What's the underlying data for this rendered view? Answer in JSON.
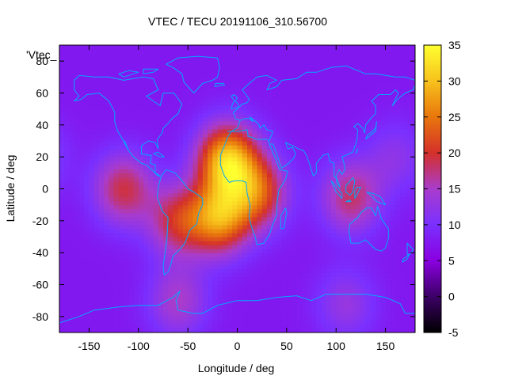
{
  "chart_data": {
    "type": "heatmap",
    "title": "VTEC / TECU 20191106_310.56700",
    "xlabel": "Longitude / deg",
    "ylabel": "Latitude / deg",
    "key_label": "'Vtec_",
    "xlim": [
      -180,
      180
    ],
    "ylim": [
      -90,
      90
    ],
    "xticks": [
      -150,
      -100,
      -50,
      0,
      50,
      100,
      150
    ],
    "yticks": [
      -80,
      -60,
      -40,
      -20,
      0,
      20,
      40,
      60,
      80
    ],
    "colorbar": {
      "min": -5,
      "max": 35,
      "ticks": [
        -5,
        0,
        5,
        10,
        15,
        20,
        25,
        30,
        35
      ]
    },
    "colors": [
      "#000000",
      "#3c0066",
      "#8a00e0",
      "#7a30ff",
      "#a93ccc",
      "#d4302a",
      "#e8760c",
      "#f7c21c",
      "#ffff30"
    ],
    "grid": false,
    "overlay": "coastlines",
    "coast_color": "#00aaff",
    "background_vtec": 7.5,
    "peaks": [
      {
        "lon": -10,
        "lat": 18,
        "vtec": 30
      },
      {
        "lon": -18,
        "lat": -18,
        "vtec": 26
      },
      {
        "lon": 20,
        "lat": -2,
        "vtec": 22
      },
      {
        "lon": -115,
        "lat": 0,
        "vtec": 19
      },
      {
        "lon": -60,
        "lat": -20,
        "vtec": 19
      },
      {
        "lon": 115,
        "lat": -5,
        "vtec": 18
      },
      {
        "lon": -60,
        "lat": -70,
        "vtec": 15
      },
      {
        "lon": 110,
        "lat": -72,
        "vtec": 13
      },
      {
        "lon": 160,
        "lat": 20,
        "vtec": 12
      }
    ],
    "coastlines": [
      [
        [
          -165,
          68
        ],
        [
          -160,
          71
        ],
        [
          -145,
          70
        ],
        [
          -130,
          70
        ],
        [
          -115,
          68
        ],
        [
          -95,
          70
        ],
        [
          -85,
          69
        ],
        [
          -80,
          62
        ],
        [
          -92,
          58
        ],
        [
          -85,
          55
        ],
        [
          -78,
          52
        ],
        [
          -75,
          60
        ],
        [
          -64,
          60
        ],
        [
          -56,
          53
        ],
        [
          -60,
          47
        ],
        [
          -66,
          44
        ],
        [
          -70,
          41
        ],
        [
          -75,
          38
        ],
        [
          -76,
          35
        ],
        [
          -81,
          31
        ],
        [
          -80,
          25
        ],
        [
          -83,
          29
        ],
        [
          -90,
          30
        ],
        [
          -97,
          27
        ],
        [
          -97,
          22
        ],
        [
          -90,
          21
        ],
        [
          -87,
          21
        ],
        [
          -88,
          16
        ],
        [
          -83,
          15
        ],
        [
          -83,
          10
        ],
        [
          -78,
          8
        ],
        [
          -80,
          8
        ],
        [
          -85,
          11
        ],
        [
          -92,
          15
        ],
        [
          -97,
          16
        ],
        [
          -105,
          20
        ],
        [
          -110,
          24
        ],
        [
          -114,
          30
        ],
        [
          -110,
          24
        ],
        [
          -117,
          32
        ],
        [
          -121,
          36
        ],
        [
          -124,
          42
        ],
        [
          -124,
          48
        ],
        [
          -130,
          55
        ],
        [
          -140,
          60
        ],
        [
          -152,
          59
        ],
        [
          -158,
          56
        ],
        [
          -165,
          55
        ],
        [
          -160,
          58
        ],
        [
          -165,
          62
        ],
        [
          -165,
          68
        ]
      ],
      [
        [
          -77,
          8
        ],
        [
          -72,
          12
        ],
        [
          -63,
          10
        ],
        [
          -57,
          6
        ],
        [
          -50,
          0
        ],
        [
          -44,
          -2
        ],
        [
          -35,
          -6
        ],
        [
          -35,
          -10
        ],
        [
          -39,
          -15
        ],
        [
          -41,
          -22
        ],
        [
          -48,
          -26
        ],
        [
          -53,
          -34
        ],
        [
          -58,
          -38
        ],
        [
          -65,
          -42
        ],
        [
          -67,
          -47
        ],
        [
          -70,
          -52
        ],
        [
          -74,
          -54
        ],
        [
          -75,
          -48
        ],
        [
          -73,
          -40
        ],
        [
          -71,
          -30
        ],
        [
          -70,
          -18
        ],
        [
          -76,
          -14
        ],
        [
          -81,
          -5
        ],
        [
          -80,
          1
        ],
        [
          -77,
          8
        ]
      ],
      [
        [
          -10,
          36
        ],
        [
          -6,
          36
        ],
        [
          0,
          38
        ],
        [
          3,
          43
        ],
        [
          -2,
          44
        ],
        [
          -4,
          48
        ],
        [
          0,
          50
        ],
        [
          5,
          53
        ],
        [
          10,
          54
        ],
        [
          12,
          56
        ],
        [
          10,
          58
        ],
        [
          5,
          62
        ],
        [
          12,
          66
        ],
        [
          20,
          70
        ],
        [
          30,
          71
        ],
        [
          40,
          68
        ],
        [
          33,
          66
        ],
        [
          30,
          62
        ],
        [
          40,
          64
        ],
        [
          45,
          68
        ],
        [
          60,
          69
        ],
        [
          70,
          73
        ],
        [
          80,
          73
        ],
        [
          95,
          76
        ],
        [
          110,
          77
        ],
        [
          130,
          72
        ],
        [
          140,
          72
        ],
        [
          160,
          70
        ],
        [
          170,
          70
        ],
        [
          180,
          68
        ]
      ],
      [
        [
          -17,
          15
        ],
        [
          -17,
          21
        ],
        [
          -13,
          27
        ],
        [
          -10,
          32
        ],
        [
          -6,
          36
        ],
        [
          0,
          36
        ],
        [
          10,
          37
        ],
        [
          11,
          33
        ],
        [
          20,
          31
        ],
        [
          30,
          31
        ],
        [
          32,
          30
        ],
        [
          33,
          27
        ],
        [
          38,
          20
        ],
        [
          43,
          12
        ],
        [
          51,
          11
        ],
        [
          49,
          6
        ],
        [
          42,
          -1
        ],
        [
          40,
          -10
        ],
        [
          40,
          -16
        ],
        [
          35,
          -24
        ],
        [
          33,
          -28
        ],
        [
          27,
          -34
        ],
        [
          20,
          -35
        ],
        [
          18,
          -30
        ],
        [
          15,
          -25
        ],
        [
          12,
          -18
        ],
        [
          13,
          -10
        ],
        [
          10,
          -3
        ],
        [
          9,
          4
        ],
        [
          5,
          5
        ],
        [
          -3,
          5
        ],
        [
          -8,
          4
        ],
        [
          -13,
          8
        ],
        [
          -17,
          15
        ]
      ],
      [
        [
          32,
          30
        ],
        [
          35,
          34
        ],
        [
          36,
          36
        ],
        [
          30,
          37
        ],
        [
          27,
          40
        ],
        [
          23,
          38
        ],
        [
          22,
          40
        ],
        [
          19,
          42
        ],
        [
          13,
          45
        ],
        [
          16,
          42
        ],
        [
          12,
          44
        ],
        [
          8,
          44
        ],
        [
          3,
          43
        ]
      ],
      [
        [
          33,
          28
        ],
        [
          36,
          28
        ],
        [
          40,
          22
        ],
        [
          43,
          16
        ],
        [
          45,
          13
        ],
        [
          52,
          16
        ],
        [
          57,
          19
        ],
        [
          59,
          22
        ],
        [
          56,
          26
        ],
        [
          51,
          25
        ],
        [
          49,
          29
        ],
        [
          52,
          28
        ],
        [
          56,
          27
        ],
        [
          62,
          25
        ],
        [
          67,
          24
        ],
        [
          70,
          21
        ],
        [
          73,
          16
        ],
        [
          77,
          8
        ],
        [
          80,
          10
        ],
        [
          80,
          16
        ],
        [
          87,
          21
        ],
        [
          92,
          22
        ],
        [
          94,
          17
        ],
        [
          98,
          16
        ],
        [
          98,
          8
        ],
        [
          101,
          6
        ],
        [
          104,
          1
        ],
        [
          101,
          3
        ],
        [
          100,
          8
        ],
        [
          103,
          12
        ],
        [
          106,
          9
        ],
        [
          109,
          12
        ],
        [
          108,
          16
        ],
        [
          106,
          20
        ],
        [
          110,
          21
        ],
        [
          117,
          23
        ],
        [
          121,
          30
        ],
        [
          122,
          37
        ],
        [
          118,
          39
        ],
        [
          122,
          41
        ],
        [
          127,
          38
        ],
        [
          129,
          35
        ],
        [
          130,
          40
        ],
        [
          135,
          44
        ],
        [
          140,
          47
        ],
        [
          140,
          52
        ],
        [
          136,
          55
        ],
        [
          143,
          59
        ],
        [
          155,
          59
        ],
        [
          160,
          62
        ],
        [
          163,
          60
        ],
        [
          157,
          52
        ],
        [
          162,
          56
        ],
        [
          170,
          60
        ],
        [
          178,
          62
        ],
        [
          180,
          65
        ]
      ],
      [
        [
          114,
          -22
        ],
        [
          113,
          -26
        ],
        [
          115,
          -34
        ],
        [
          123,
          -34
        ],
        [
          130,
          -32
        ],
        [
          135,
          -35
        ],
        [
          140,
          -38
        ],
        [
          146,
          -39
        ],
        [
          150,
          -37
        ],
        [
          153,
          -31
        ],
        [
          153,
          -25
        ],
        [
          146,
          -19
        ],
        [
          142,
          -11
        ],
        [
          140,
          -17
        ],
        [
          136,
          -12
        ],
        [
          131,
          -12
        ],
        [
          125,
          -15
        ],
        [
          122,
          -18
        ],
        [
          114,
          -22
        ]
      ],
      [
        [
          -180,
          -84
        ],
        [
          -160,
          -80
        ],
        [
          -145,
          -76
        ],
        [
          -120,
          -74
        ],
        [
          -100,
          -73
        ],
        [
          -80,
          -73
        ],
        [
          -65,
          -68
        ],
        [
          -58,
          -64
        ],
        [
          -62,
          -70
        ],
        [
          -60,
          -76
        ],
        [
          -45,
          -78
        ],
        [
          -35,
          -78
        ],
        [
          -20,
          -73
        ],
        [
          0,
          -70
        ],
        [
          20,
          -70
        ],
        [
          40,
          -68
        ],
        [
          60,
          -67
        ],
        [
          75,
          -70
        ],
        [
          90,
          -66
        ],
        [
          110,
          -66
        ],
        [
          130,
          -66
        ],
        [
          150,
          -68
        ],
        [
          165,
          -72
        ],
        [
          170,
          -78
        ],
        [
          180,
          -78
        ]
      ],
      [
        [
          95,
          5
        ],
        [
          98,
          3
        ],
        [
          102,
          0
        ],
        [
          106,
          -3
        ],
        [
          106,
          -6
        ],
        [
          100,
          -2
        ],
        [
          95,
          5
        ]
      ],
      [
        [
          110,
          -8
        ],
        [
          115,
          -8
        ],
        [
          114,
          -7
        ],
        [
          110,
          -8
        ]
      ],
      [
        [
          110,
          2
        ],
        [
          117,
          7
        ],
        [
          119,
          5
        ],
        [
          117,
          -2
        ],
        [
          114,
          -4
        ],
        [
          110,
          -2
        ],
        [
          110,
          2
        ]
      ],
      [
        [
          119,
          -1
        ],
        [
          121,
          1
        ],
        [
          125,
          1
        ],
        [
          121,
          -4
        ],
        [
          119,
          -6
        ],
        [
          119,
          -1
        ]
      ],
      [
        [
          131,
          -2
        ],
        [
          138,
          -3
        ],
        [
          145,
          -5
        ],
        [
          150,
          -10
        ],
        [
          141,
          -8
        ],
        [
          137,
          -5
        ],
        [
          131,
          -2
        ]
      ],
      [
        [
          130,
          31
        ],
        [
          132,
          34
        ],
        [
          135,
          35
        ],
        [
          140,
          38
        ],
        [
          141,
          42
        ],
        [
          140,
          36
        ],
        [
          136,
          34
        ],
        [
          130,
          31
        ]
      ],
      [
        [
          -44,
          60
        ],
        [
          -50,
          64
        ],
        [
          -54,
          67
        ],
        [
          -56,
          72
        ],
        [
          -65,
          76
        ],
        [
          -72,
          78
        ],
        [
          -60,
          82
        ],
        [
          -40,
          83
        ],
        [
          -20,
          82
        ],
        [
          -18,
          76
        ],
        [
          -20,
          70
        ],
        [
          -25,
          68
        ],
        [
          -35,
          66
        ],
        [
          -44,
          60
        ]
      ],
      [
        [
          -6,
          50
        ],
        [
          -5,
          53
        ],
        [
          -3,
          55
        ],
        [
          -6,
          58
        ],
        [
          -3,
          59
        ],
        [
          0,
          57
        ],
        [
          -2,
          55
        ],
        [
          1,
          53
        ],
        [
          1,
          51
        ],
        [
          -6,
          50
        ]
      ],
      [
        [
          44,
          -25
        ],
        [
          47,
          -25
        ],
        [
          50,
          -15
        ],
        [
          49,
          -12
        ],
        [
          44,
          -17
        ],
        [
          44,
          -25
        ]
      ],
      [
        [
          -23,
          64
        ],
        [
          -13,
          65
        ],
        [
          -14,
          66
        ],
        [
          -22,
          66
        ],
        [
          -23,
          64
        ]
      ],
      [
        [
          172,
          -41
        ],
        [
          175,
          -41
        ],
        [
          178,
          -38
        ],
        [
          172,
          -34
        ],
        [
          172,
          -41
        ]
      ],
      [
        [
          167,
          -46
        ],
        [
          172,
          -44
        ],
        [
          174,
          -41
        ],
        [
          168,
          -44
        ],
        [
          167,
          -46
        ]
      ],
      [
        [
          -85,
          22
        ],
        [
          -80,
          23
        ],
        [
          -74,
          20
        ],
        [
          -78,
          20
        ],
        [
          -85,
          22
        ]
      ],
      [
        [
          120,
          22
        ],
        [
          122,
          25
        ],
        [
          121,
          23
        ],
        [
          120,
          22
        ]
      ],
      [
        [
          -95,
          72
        ],
        [
          -85,
          73
        ],
        [
          -80,
          75
        ],
        [
          -95,
          75
        ],
        [
          -95,
          72
        ]
      ],
      [
        [
          -120,
          72
        ],
        [
          -110,
          74
        ],
        [
          -100,
          73
        ],
        [
          -115,
          70
        ],
        [
          -120,
          72
        ]
      ]
    ]
  }
}
